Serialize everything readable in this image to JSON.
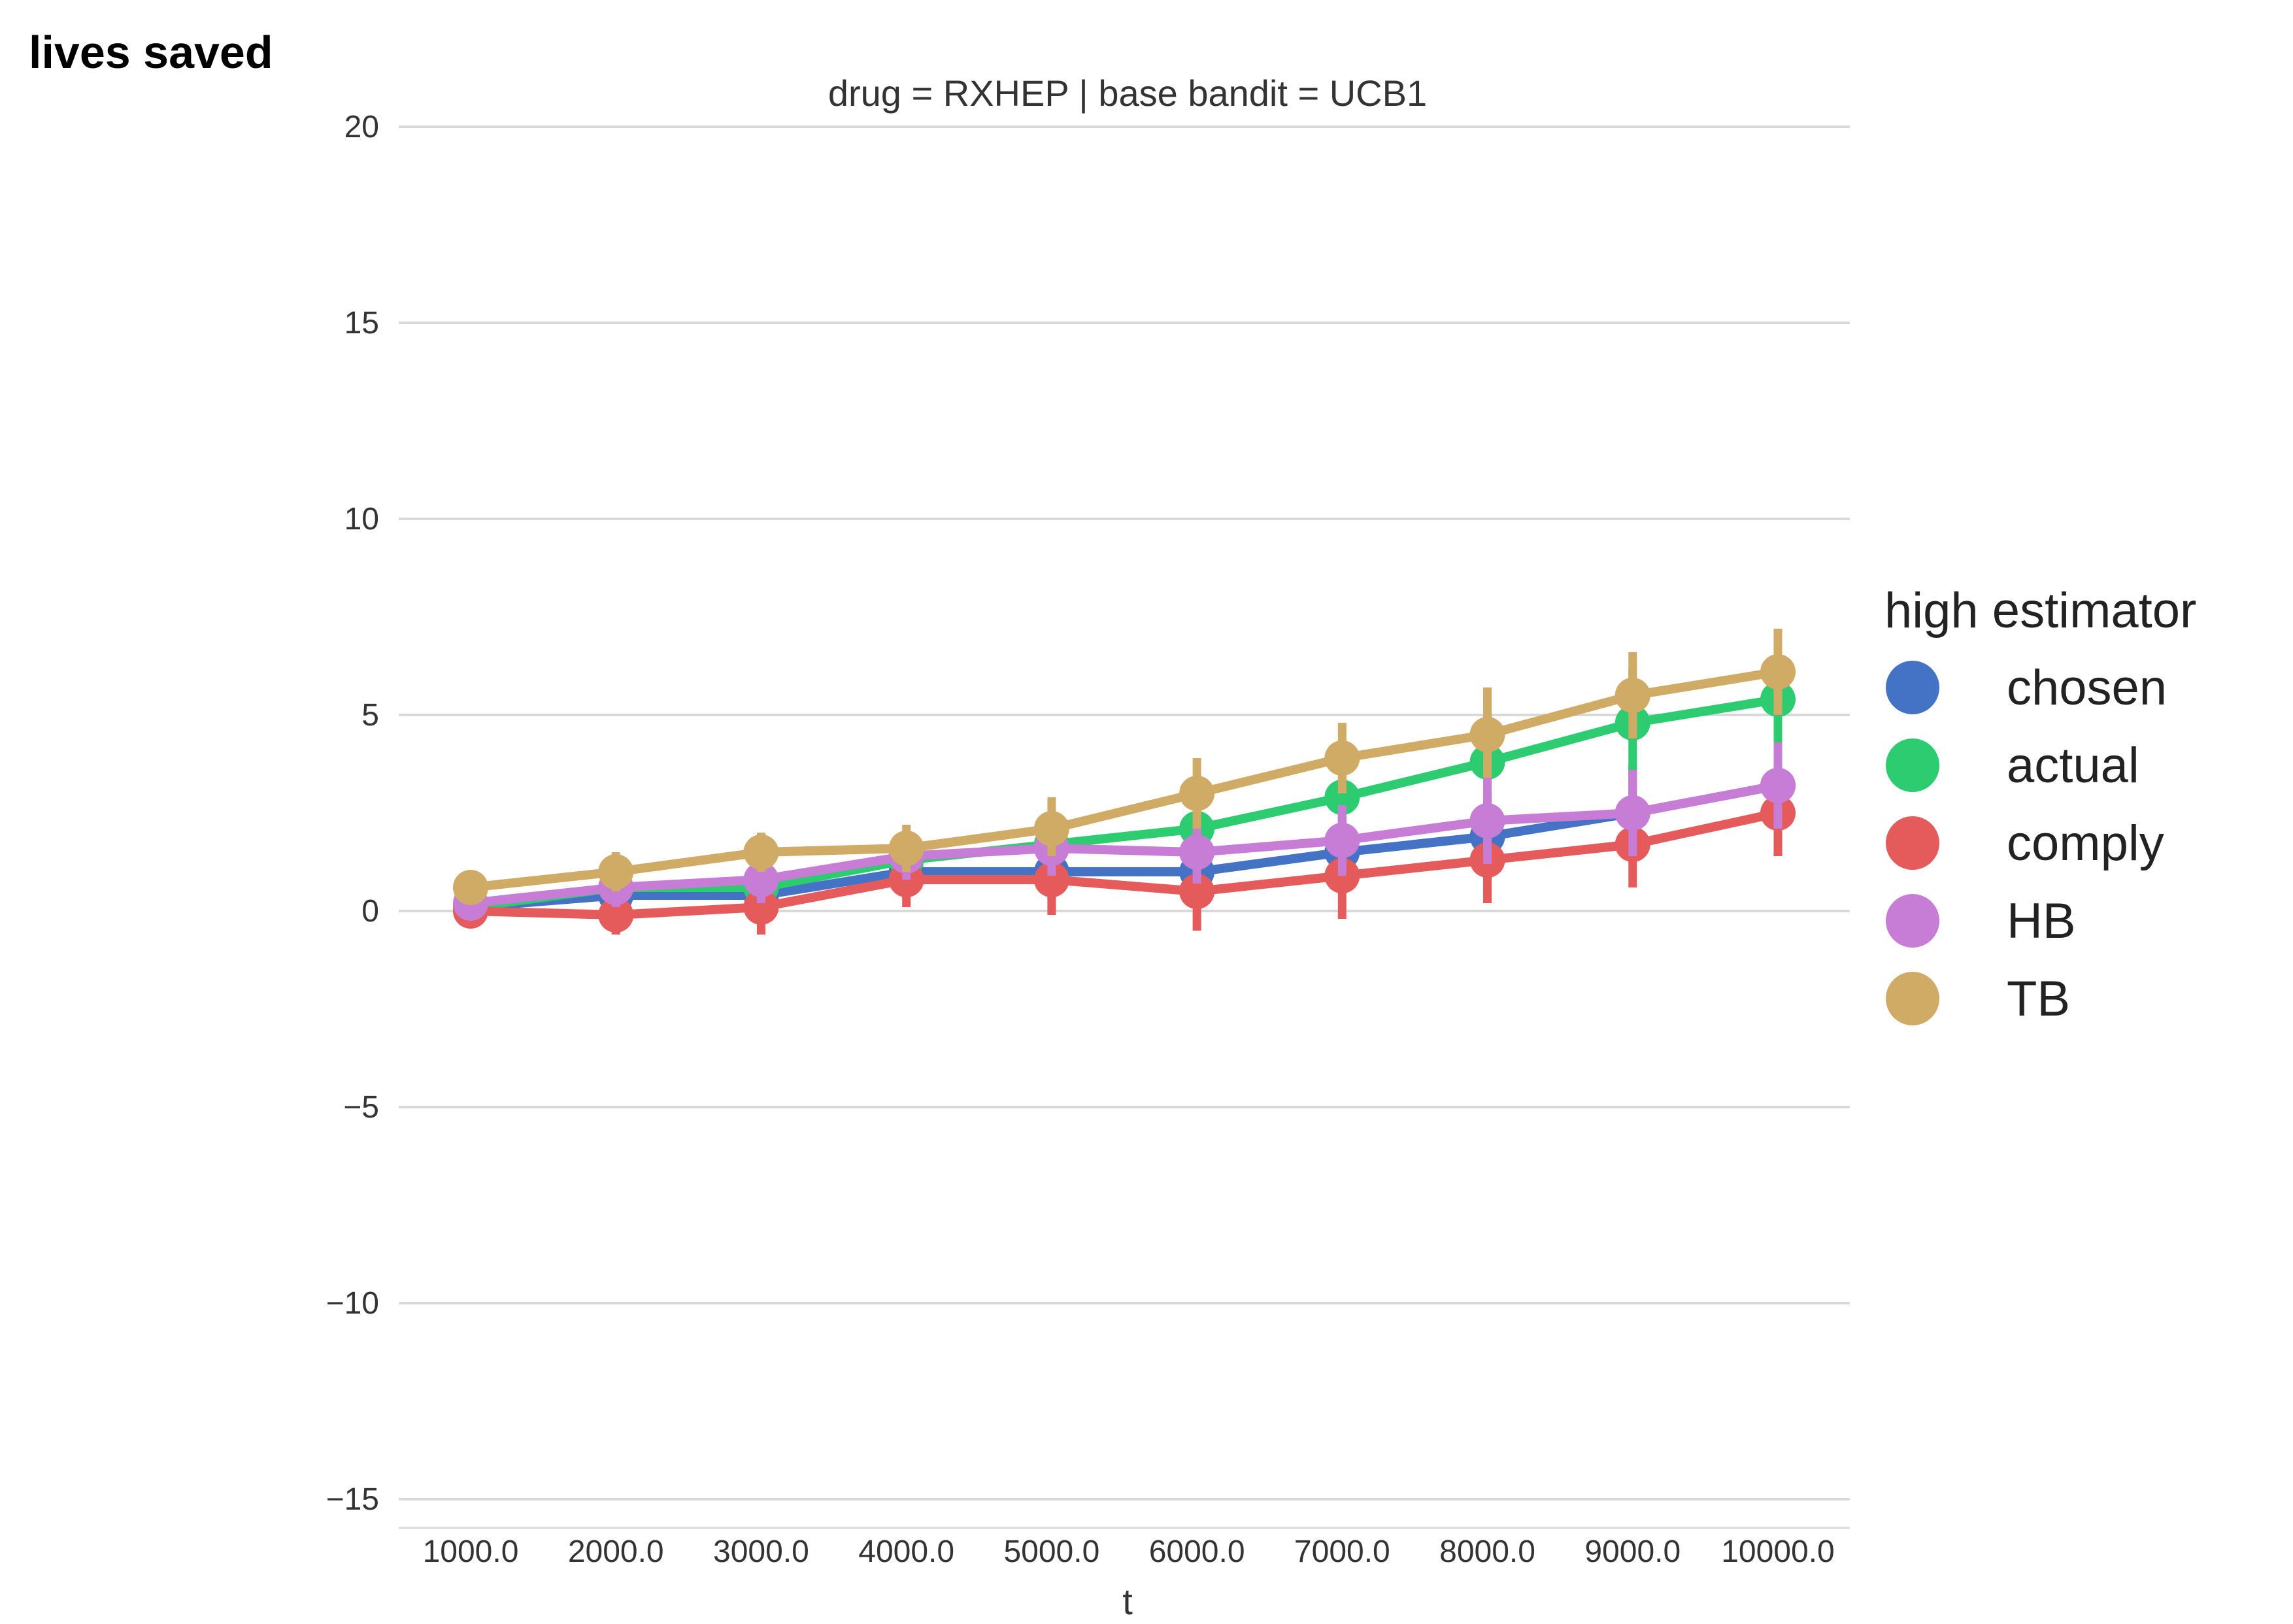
{
  "chart_data": {
    "type": "line",
    "title": "drug = RXHEP | base bandit = UCB1",
    "ylabel": "lives saved",
    "xlabel": "t",
    "categories": [
      "1000.0",
      "2000.0",
      "3000.0",
      "4000.0",
      "5000.0",
      "6000.0",
      "7000.0",
      "8000.0",
      "9000.0",
      "10000.0"
    ],
    "ylim": [
      -15.5,
      20
    ],
    "yticks": [
      20,
      15,
      10,
      5,
      0,
      -5,
      -10,
      -15
    ],
    "ytick_labels": [
      "20",
      "15",
      "10",
      "5",
      "0",
      "−5",
      "−10",
      "−15"
    ],
    "grid": "horizontal",
    "legend": {
      "title": "high estimator",
      "placement": "right"
    },
    "series": [
      {
        "name": "chosen",
        "color": "#4472C4",
        "values": [
          0.1,
          0.4,
          0.4,
          1.0,
          1.0,
          1.0,
          1.5,
          1.9,
          2.5,
          3.2
        ],
        "err_lo": [
          -0.2,
          -0.1,
          -0.2,
          0.4,
          0.3,
          0.2,
          0.6,
          0.8,
          1.3,
          2.2
        ],
        "err_hi": [
          0.4,
          0.9,
          1.0,
          1.6,
          1.7,
          1.8,
          2.4,
          3.0,
          3.7,
          4.2
        ]
      },
      {
        "name": "actual",
        "color": "#2ECC71",
        "values": [
          0.1,
          0.6,
          0.6,
          1.3,
          1.7,
          2.1,
          2.9,
          3.8,
          4.8,
          5.4
        ],
        "err_lo": [
          -0.2,
          0.1,
          0.0,
          0.7,
          1.0,
          1.2,
          1.9,
          2.6,
          3.4,
          4.3
        ],
        "err_hi": [
          0.4,
          1.1,
          1.2,
          1.9,
          2.4,
          3.0,
          3.9,
          5.0,
          6.2,
          6.5
        ]
      },
      {
        "name": "comply",
        "color": "#E55A5A",
        "values": [
          0.0,
          -0.1,
          0.1,
          0.8,
          0.8,
          0.5,
          0.9,
          1.3,
          1.7,
          2.5
        ],
        "err_lo": [
          -0.3,
          -0.6,
          -0.6,
          0.1,
          -0.1,
          -0.5,
          -0.2,
          0.2,
          0.6,
          1.4
        ],
        "err_hi": [
          0.3,
          0.4,
          0.8,
          1.5,
          1.7,
          1.5,
          2.0,
          2.4,
          2.8,
          3.6
        ]
      },
      {
        "name": "HB",
        "color": "#C77CD6",
        "values": [
          0.2,
          0.6,
          0.8,
          1.4,
          1.6,
          1.5,
          1.8,
          2.3,
          2.5,
          3.2
        ],
        "err_lo": [
          -0.1,
          0.1,
          0.2,
          0.8,
          0.9,
          0.7,
          0.9,
          1.2,
          1.4,
          2.1
        ],
        "err_hi": [
          0.5,
          1.1,
          1.4,
          2.0,
          2.3,
          2.3,
          2.7,
          3.4,
          3.6,
          4.3
        ]
      },
      {
        "name": "TB",
        "color": "#CFAB66",
        "values": [
          0.6,
          1.0,
          1.5,
          1.6,
          2.1,
          3.0,
          3.9,
          4.5,
          5.5,
          6.1
        ],
        "err_lo": [
          0.3,
          0.5,
          1.0,
          1.0,
          1.4,
          2.1,
          3.0,
          3.4,
          4.4,
          5.0
        ],
        "err_hi": [
          0.9,
          1.5,
          2.0,
          2.2,
          2.9,
          3.9,
          4.8,
          5.7,
          6.6,
          7.2
        ]
      }
    ]
  }
}
